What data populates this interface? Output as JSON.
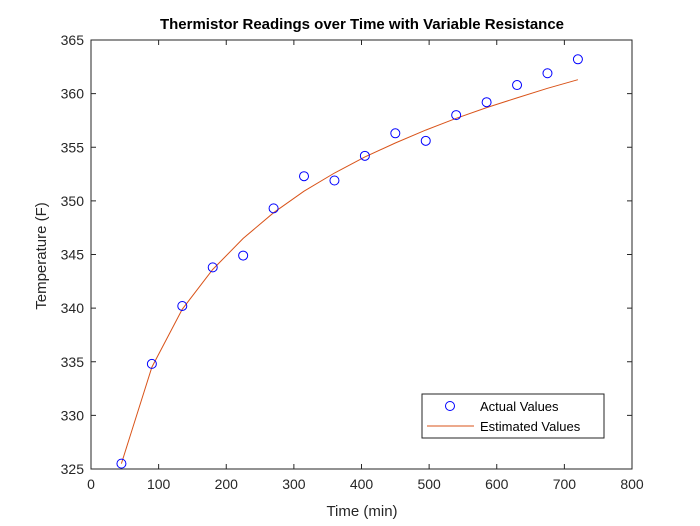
{
  "chart_data": {
    "type": "scatter",
    "title": "Thermistor Readings over Time with Variable Resistance",
    "xlabel": "Time (min)",
    "ylabel": "Temperature (F)",
    "xlim": [
      0,
      800
    ],
    "ylim": [
      325,
      365
    ],
    "xticks": [
      0,
      100,
      200,
      300,
      400,
      500,
      600,
      700,
      800
    ],
    "yticks": [
      325,
      330,
      335,
      340,
      345,
      350,
      355,
      360,
      365
    ],
    "grid": false,
    "legend_position": "bottom-right",
    "series": [
      {
        "name": "Actual Values",
        "kind": "markers",
        "marker": "circle",
        "color": "#0000ff",
        "x": [
          45,
          90,
          135,
          180,
          225,
          270,
          315,
          360,
          405,
          450,
          495,
          540,
          585,
          630,
          675,
          720
        ],
        "y": [
          325.5,
          334.8,
          340.2,
          343.8,
          344.9,
          349.3,
          352.3,
          351.9,
          354.2,
          356.3,
          355.6,
          358.0,
          359.2,
          360.8,
          361.9,
          363.2
        ]
      },
      {
        "name": "Estimated Values",
        "kind": "line",
        "color": "#d95319",
        "x": [
          45,
          90,
          135,
          180,
          225,
          270,
          315,
          360,
          405,
          450,
          495,
          540,
          585,
          630,
          675,
          720
        ],
        "y": [
          325.5,
          334.5,
          339.9,
          343.6,
          346.5,
          348.9,
          350.9,
          352.6,
          354.1,
          355.4,
          356.6,
          357.7,
          358.7,
          359.6,
          360.5,
          361.3
        ]
      }
    ]
  }
}
